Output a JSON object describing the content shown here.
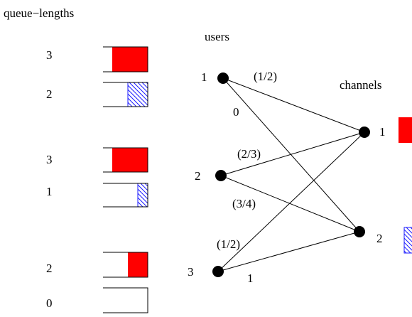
{
  "title": "queue−lengths",
  "users_label": "users",
  "channels_label": "channels",
  "colors": {
    "red_packet": "#ff0000",
    "blue_packet": "#1a1aff",
    "line": "#000000"
  },
  "users": [
    {
      "id": "1",
      "queues": [
        {
          "length": "3",
          "fill": "red"
        },
        {
          "length": "2",
          "fill": "blue-hatched"
        }
      ]
    },
    {
      "id": "2",
      "queues": [
        {
          "length": "3",
          "fill": "red"
        },
        {
          "length": "1",
          "fill": "blue-hatched"
        }
      ]
    },
    {
      "id": "3",
      "queues": [
        {
          "length": "2",
          "fill": "red"
        },
        {
          "length": "0",
          "fill": "empty"
        }
      ]
    }
  ],
  "channels": [
    {
      "id": "1",
      "packet": "red"
    },
    {
      "id": "2",
      "packet": "blue-hatched"
    }
  ],
  "edges": [
    {
      "user": "1",
      "channel": "1",
      "label": "(1/2)"
    },
    {
      "user": "1",
      "channel": "2",
      "label": "0"
    },
    {
      "user": "2",
      "channel": "1",
      "label": "(2/3)"
    },
    {
      "user": "2",
      "channel": "2",
      "label": "(3/4)"
    },
    {
      "user": "3",
      "channel": "1",
      "label": "(1/2)"
    },
    {
      "user": "3",
      "channel": "2",
      "label": "1"
    }
  ]
}
